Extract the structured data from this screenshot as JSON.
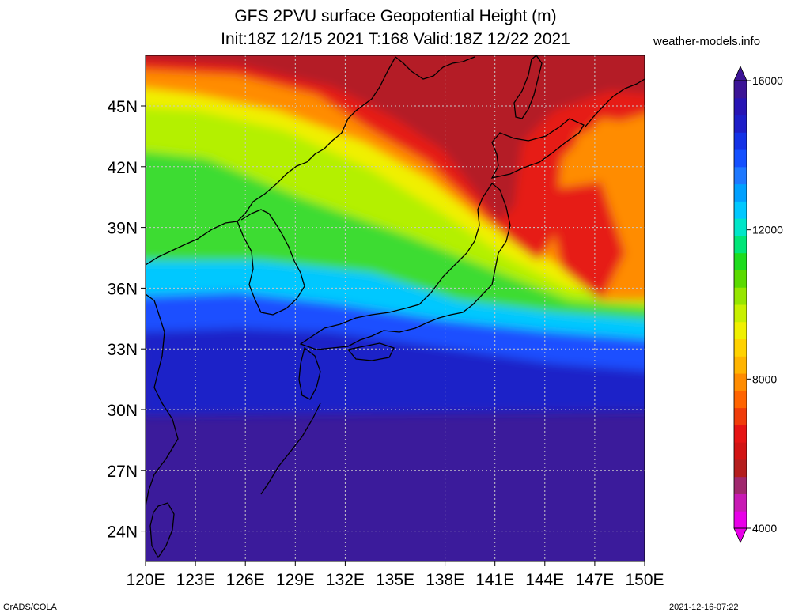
{
  "title": {
    "line1": "GFS 2PVU surface Geopotential Height (m)",
    "line2": "Init:18Z 12/15 2021 T:168 Valid:18Z 12/22 2021"
  },
  "site_label": "weather-models.info",
  "footer": {
    "left": "GrADS/COLA",
    "right": "2021-12-16-07:22"
  },
  "map": {
    "lat_range": [
      22.5,
      47.5
    ],
    "lon_range": [
      120,
      150
    ],
    "lat_ticks": [
      {
        "value": 24,
        "label": "24N"
      },
      {
        "value": 27,
        "label": "27N"
      },
      {
        "value": 30,
        "label": "30N"
      },
      {
        "value": 33,
        "label": "33N"
      },
      {
        "value": 36,
        "label": "36N"
      },
      {
        "value": 39,
        "label": "39N"
      },
      {
        "value": 42,
        "label": "42N"
      },
      {
        "value": 45,
        "label": "45N"
      }
    ],
    "lon_ticks": [
      {
        "value": 120,
        "label": "120E"
      },
      {
        "value": 123,
        "label": "123E"
      },
      {
        "value": 126,
        "label": "126E"
      },
      {
        "value": 129,
        "label": "129E"
      },
      {
        "value": 132,
        "label": "132E"
      },
      {
        "value": 135,
        "label": "135E"
      },
      {
        "value": 138,
        "label": "138E"
      },
      {
        "value": 141,
        "label": "141E"
      },
      {
        "value": 144,
        "label": "144E"
      },
      {
        "value": 147,
        "label": "147E"
      },
      {
        "value": 150,
        "label": "150E"
      }
    ],
    "grid": "dotted"
  },
  "colorbar": {
    "range": [
      4000,
      16000
    ],
    "labels": [
      {
        "value": 4000,
        "text": "4000"
      },
      {
        "value": 8000,
        "text": "8000"
      },
      {
        "value": 12000,
        "text": "12000"
      },
      {
        "value": 16000,
        "text": "16000"
      }
    ],
    "colors": [
      "#e800e8",
      "#c81ab4",
      "#a0286e",
      "#b41e1e",
      "#d21414",
      "#e61414",
      "#f03c0a",
      "#ff6400",
      "#ff8c00",
      "#ffb400",
      "#ffd200",
      "#f0f000",
      "#c8f000",
      "#96e600",
      "#5ada00",
      "#1edc1e",
      "#00e678",
      "#00e6c8",
      "#00c8ff",
      "#00a0ff",
      "#1e78ff",
      "#1450ff",
      "#1432e6",
      "#1e1ec8",
      "#2814b4",
      "#3c1496"
    ]
  },
  "field_colors": {
    "purple": "#3b1b9b",
    "deep_blue": "#1a22c8",
    "blue": "#1e50ff",
    "cyan": "#00c8ff",
    "green": "#3cdc32",
    "yellow_green": "#b4f000",
    "yellow": "#f0f000",
    "orange": "#ff8c00",
    "red": "#e61e14",
    "dark_red": "#b41e28"
  }
}
